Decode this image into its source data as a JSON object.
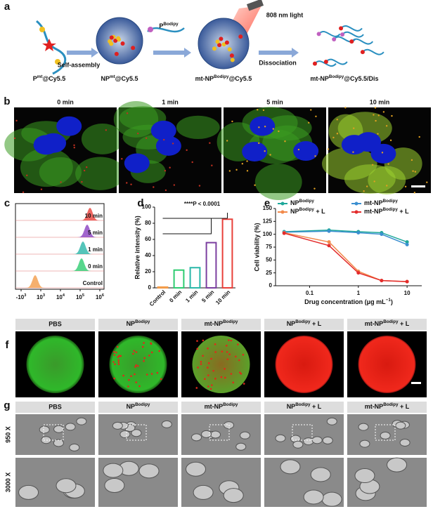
{
  "panel_a": {
    "letter": "a",
    "labels": [
      [
        "P",
        "mt",
        "@Cy5.5"
      ],
      "Self-assembly",
      [
        "NP",
        "mt",
        "@Cy5.5"
      ],
      [
        "P",
        "Bodipy"
      ],
      "808 nm light",
      [
        "mt-NP",
        "Bodipy",
        "@Cy5.5"
      ],
      "Dissociation",
      [
        "mt-NP",
        "Bodipy",
        "@Cy5.5/Dis"
      ]
    ]
  },
  "panel_b": {
    "letter": "b",
    "times": [
      "0 min",
      "1 min",
      "5 min",
      "10 min"
    ]
  },
  "panel_c": {
    "letter": "c",
    "rows": [
      "10 min",
      "5 min",
      "1 min",
      "0 min",
      "Control"
    ],
    "xticks": [
      [
        "-10",
        "3"
      ],
      [
        "10",
        "3"
      ],
      [
        "10",
        "4"
      ],
      [
        "10",
        "5"
      ],
      [
        "10",
        "6"
      ]
    ]
  },
  "chart_data": [
    {
      "type": "bar",
      "letter": "d",
      "ylabel": "Relative intensity (%)",
      "annotation": "****P < 0.0001",
      "categories": [
        "Control",
        "0 min",
        "1 min",
        "5 min",
        "10 min"
      ],
      "values": [
        1,
        22,
        25,
        56,
        85
      ],
      "colors": [
        "#f39c4a",
        "#2ecc71",
        "#2ab7a9",
        "#7b3fa0",
        "#e8403a"
      ],
      "ylim": [
        0,
        100
      ],
      "yticks": [
        0,
        20,
        40,
        60,
        80,
        100
      ]
    },
    {
      "type": "line",
      "letter": "e",
      "ylabel": "Cell viability (%)",
      "xlabel": [
        "Drug concentration (μg mL",
        "−1",
        ")"
      ],
      "log_x": true,
      "x": [
        0.03,
        0.25,
        1,
        3,
        10
      ],
      "xlim": [
        0.02,
        20
      ],
      "xticks": [
        0.1,
        1,
        10
      ],
      "ylim": [
        0,
        150
      ],
      "yticks": [
        0,
        25,
        50,
        75,
        100,
        125,
        150
      ],
      "series": [
        {
          "name": [
            "NP",
            "Bodipy"
          ],
          "color": "#1fa89a",
          "values": [
            105,
            108,
            105,
            103,
            85
          ]
        },
        {
          "name": [
            "mt-NP",
            "Bodipy"
          ],
          "color": "#3b8fd0",
          "values": [
            104,
            106,
            103,
            100,
            80
          ]
        },
        {
          "name": [
            "NP",
            "Bodipy",
            " + L"
          ],
          "color": "#f28a4b",
          "values": [
            103,
            85,
            28,
            10,
            8
          ]
        },
        {
          "name": [
            "mt-NP",
            "Bodipy",
            " + L"
          ],
          "color": "#e32b2b",
          "values": [
            102,
            78,
            25,
            10,
            8
          ]
        }
      ]
    }
  ],
  "panel_f": {
    "letter": "f",
    "labels": [
      "PBS",
      [
        "NP",
        "Bodipy"
      ],
      [
        "mt-NP",
        "Bodipy"
      ],
      [
        "NP",
        "Bodipy",
        " + L"
      ],
      [
        "mt-NP",
        "Bodipy",
        " + L"
      ]
    ]
  },
  "panel_g": {
    "letter": "g",
    "labels": [
      "PBS",
      [
        "NP",
        "Bodipy"
      ],
      [
        "mt-NP",
        "Bodipy"
      ],
      [
        "NP",
        "Bodipy",
        " + L"
      ],
      [
        "mt-NP",
        "Bodipy",
        " + L"
      ]
    ],
    "rows": [
      "950 X",
      "3000 X"
    ]
  }
}
